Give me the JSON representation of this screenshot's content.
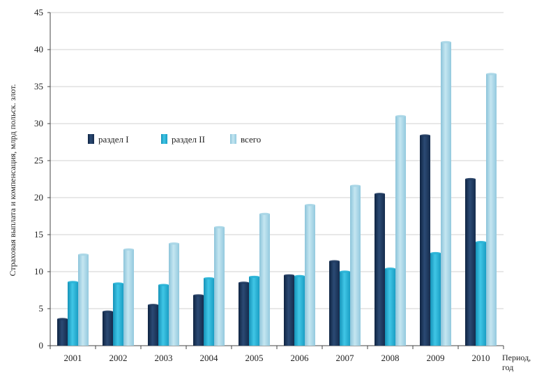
{
  "chart_data": {
    "type": "bar",
    "title": "",
    "ylabel": "Страховая выплата и компенсация, млрд польск. злот.",
    "xlabel_line1": "Период,",
    "xlabel_line2": "год",
    "categories": [
      "2001",
      "2002",
      "2003",
      "2004",
      "2005",
      "2006",
      "2007",
      "2008",
      "2009",
      "2010"
    ],
    "ylim": [
      0,
      45
    ],
    "yticks": [
      0,
      5,
      10,
      15,
      20,
      25,
      30,
      35,
      40,
      45
    ],
    "grid": true,
    "legend_position": "upper-left",
    "series": [
      {
        "name": "раздел I",
        "color": "#1f3a5f",
        "values": [
          3.6,
          4.6,
          5.5,
          6.8,
          8.5,
          9.5,
          11.4,
          20.5,
          28.4,
          22.5
        ]
      },
      {
        "name": "раздел II",
        "color": "#27b2d6",
        "values": [
          8.6,
          8.4,
          8.2,
          9.1,
          9.3,
          9.4,
          10.0,
          10.4,
          12.5,
          14.0
        ]
      },
      {
        "name": "всего",
        "color": "#a6d5e6",
        "values": [
          12.3,
          13.0,
          13.8,
          16.0,
          17.8,
          19.0,
          21.6,
          31.0,
          41.0,
          36.7
        ]
      }
    ]
  }
}
